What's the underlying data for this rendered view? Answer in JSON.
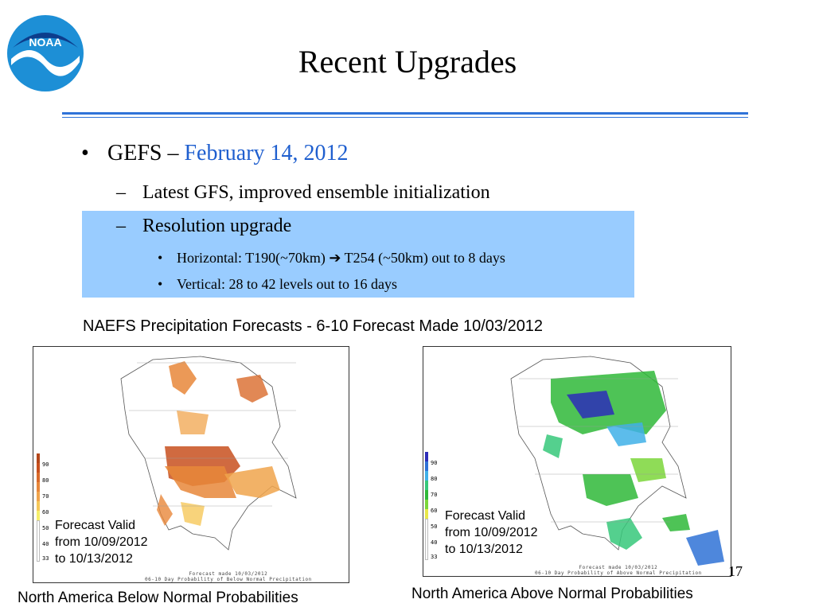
{
  "logo": {
    "text": "NOAA"
  },
  "title": "Recent Upgrades",
  "bullet": {
    "marker": "•",
    "label": "GEFS – ",
    "date": "February 14, 2012",
    "subitems": [
      {
        "marker": "–",
        "text": "Latest GFS, improved ensemble initialization"
      },
      {
        "marker": "–",
        "text": "Resolution upgrade"
      }
    ],
    "details": [
      {
        "marker": "•",
        "text": "Horizontal: T190(~70km) ➔ T254 (~50km) out to 8 days"
      },
      {
        "marker": "•",
        "text": "Vertical: 28 to 42 levels out to 16 days"
      }
    ]
  },
  "figure_title": "NAEFS Precipitation Forecasts - 6-10 Forecast Made 10/03/2012",
  "left_map": {
    "legend": [
      "90",
      "80",
      "70",
      "60",
      "50",
      "40",
      "33"
    ],
    "forecast_valid": [
      "Forecast Valid",
      "from 10/09/2012",
      "to 10/13/2012"
    ],
    "footer": [
      "Forecast made 10/03/2012",
      "06-10 Day Probability of Below Normal Precipitation"
    ],
    "caption": "North America Below Normal Probabilities"
  },
  "right_map": {
    "legend": [
      "90",
      "80",
      "70",
      "60",
      "50",
      "40",
      "33"
    ],
    "forecast_valid": [
      "Forecast Valid",
      "from 10/09/2012",
      "to 10/13/2012"
    ],
    "footer": [
      "Forecast made 10/03/2012",
      "06-10 Day Probability of Above Normal Precipitation"
    ],
    "caption": "North America Above  Normal Probabilities"
  },
  "page_number": "17",
  "colors": {
    "accent_rule": "#2f73d8",
    "date_text": "#1f5fcf",
    "highlight": "#99ccff",
    "below_legend": [
      "#b4471a",
      "#c8501e",
      "#d96a2a",
      "#e8873a",
      "#f0a44c",
      "#f6c85a",
      "#f6ef6a",
      "#ffffff"
    ],
    "above_legend": [
      "#2d2db8",
      "#2f72d6",
      "#3fb0e8",
      "#36c87a",
      "#2fb838",
      "#7bd63a",
      "#e8e84a",
      "#ffffff"
    ]
  }
}
